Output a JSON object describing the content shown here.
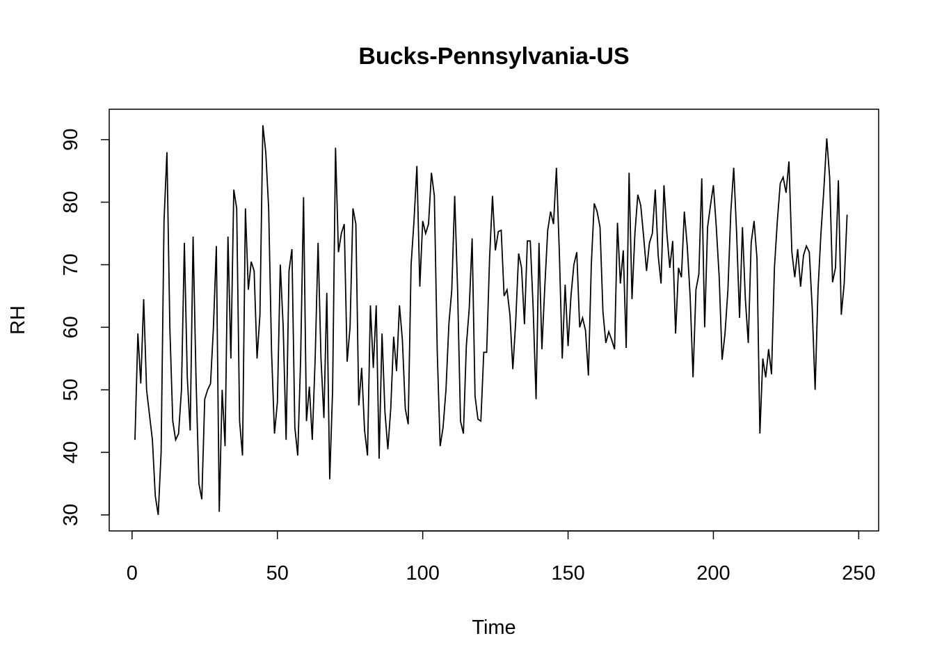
{
  "chart_data": {
    "type": "line",
    "title": "Bucks-Pennsylvania-US",
    "xlabel": "Time",
    "ylabel": "RH",
    "xlim": [
      1,
      248
    ],
    "ylim": [
      30,
      92.3
    ],
    "x_ticks": [
      0,
      50,
      100,
      150,
      200,
      250
    ],
    "y_ticks": [
      30,
      40,
      50,
      60,
      70,
      80,
      90
    ],
    "x_tick_labels": [
      "0",
      "50",
      "100",
      "150",
      "200",
      "250"
    ],
    "y_tick_labels": [
      "30",
      "40",
      "50",
      "60",
      "70",
      "80",
      "90"
    ],
    "grid": false,
    "legend": "none",
    "line_color": "#000000",
    "series": [
      {
        "values": [
          42,
          59,
          51,
          64.5,
          50,
          46,
          42,
          33,
          30,
          40,
          77,
          88,
          60,
          45,
          42,
          43,
          50,
          73.5,
          52,
          43.5,
          74.5,
          52,
          35,
          32.5,
          48.5,
          50,
          51,
          60,
          73,
          30.5,
          50,
          41,
          74.5,
          55,
          82,
          79,
          45,
          39.5,
          79,
          66,
          70.5,
          69,
          55,
          62,
          92.3,
          88,
          79,
          56,
          43,
          48,
          70,
          60,
          42,
          69,
          72.5,
          44,
          39.5,
          55,
          80.8,
          45,
          50.5,
          42,
          55,
          73.5,
          55,
          45.5,
          65.5,
          35.7,
          50,
          88.7,
          72,
          75,
          76.5,
          54.5,
          60,
          79,
          76.5,
          47.5,
          53.5,
          43.5,
          39.5,
          63.5,
          53.5,
          63.5,
          39,
          59,
          46.5,
          40.5,
          47,
          58.5,
          53,
          63.5,
          58,
          47,
          44.5,
          70,
          77,
          85.8,
          66.5,
          77,
          75,
          76.5,
          84.7,
          81,
          56,
          41,
          44,
          50,
          60.5,
          66,
          81,
          66,
          45,
          43,
          57,
          63,
          74.2,
          49,
          45.3,
          45,
          56,
          56,
          71,
          81,
          72.3,
          75.3,
          75.5,
          65,
          66,
          62,
          53.3,
          61,
          71.8,
          69.5,
          60.5,
          73.8,
          73.8,
          63,
          48.5,
          73.5,
          56.5,
          66.5,
          75.5,
          78.5,
          76.5,
          85.5,
          72,
          55,
          66.8,
          57,
          65,
          70,
          72,
          60,
          61.5,
          59.5,
          52.3,
          70,
          79.8,
          78.5,
          76,
          62.5,
          57.5,
          59.3,
          58,
          56.5,
          76.7,
          67,
          72.3,
          56.7,
          84.7,
          64.5,
          75,
          81.2,
          79.5,
          74.5,
          69,
          73.5,
          75,
          82,
          71.5,
          67,
          82.7,
          75,
          69.5,
          73.8,
          59,
          69.5,
          68,
          78.5,
          73,
          65,
          52,
          66,
          68.5,
          83.8,
          60,
          76,
          79.5,
          82.7,
          76,
          68,
          54.8,
          59,
          66,
          78.5,
          85.5,
          75,
          61.5,
          76,
          64.5,
          57.5,
          73.5,
          77,
          71,
          43,
          55,
          52,
          56.5,
          52.5,
          69.5,
          77,
          83,
          84,
          81.5,
          86.5,
          72,
          68,
          72.5,
          66.5,
          71.5,
          73,
          72,
          63,
          50,
          66,
          75,
          82,
          90.2,
          84,
          67.2,
          69.5,
          83.5,
          62,
          67,
          78
        ]
      }
    ]
  }
}
